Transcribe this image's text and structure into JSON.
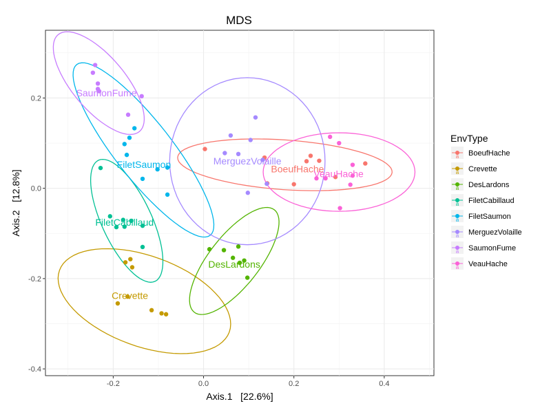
{
  "chart_data": {
    "type": "scatter",
    "title": "MDS",
    "xlabel": "Axis.1   [22.6%]",
    "ylabel": "Axis.2   [12.8%]",
    "xlim": [
      -0.35,
      0.51
    ],
    "ylim": [
      -0.415,
      0.35
    ],
    "x_ticks": [
      -0.2,
      0.0,
      0.2,
      0.4
    ],
    "y_ticks": [
      -0.4,
      -0.2,
      0.0,
      0.2
    ],
    "x_tick_labels": [
      "-0.2",
      "0.0",
      "0.2",
      "0.4"
    ],
    "y_tick_labels": [
      "-0.4",
      "-0.2",
      "0.0",
      "0.2"
    ],
    "grid": true,
    "legend": {
      "title": "EnvType",
      "placement": "right",
      "entries": [
        "BoeufHache",
        "Crevette",
        "DesLardons",
        "FiletCabillaud",
        "FiletSaumon",
        "MerguezVolaille",
        "SaumonFume",
        "VeauHache"
      ]
    },
    "series": [
      {
        "name": "BoeufHache",
        "color": "#F8766D",
        "label_pos": [
          0.208,
          0.035
        ],
        "ellipse": {
          "cx": 0.18,
          "cy": 0.052,
          "rx": 0.238,
          "ry": 0.055,
          "angle_deg": -4
        },
        "points": [
          [
            0.003,
            0.087
          ],
          [
            0.135,
            0.068
          ],
          [
            0.141,
            0.011
          ],
          [
            0.2,
            0.009
          ],
          [
            0.228,
            0.06
          ],
          [
            0.237,
            0.072
          ],
          [
            0.256,
            0.061
          ],
          [
            0.292,
            0.025
          ],
          [
            0.358,
            0.055
          ]
        ]
      },
      {
        "name": "Crevette",
        "color": "#C49A00",
        "label_pos": [
          -0.163,
          -0.245
        ],
        "ellipse": {
          "cx": -0.131,
          "cy": -0.25,
          "rx": 0.1,
          "ry": 0.2,
          "angle_deg": 70
        },
        "points": [
          [
            -0.173,
            -0.164
          ],
          [
            -0.162,
            -0.157
          ],
          [
            -0.158,
            -0.175
          ],
          [
            -0.19,
            -0.255
          ],
          [
            -0.168,
            -0.24
          ],
          [
            -0.115,
            -0.27
          ],
          [
            -0.093,
            -0.277
          ],
          [
            -0.083,
            -0.279
          ]
        ]
      },
      {
        "name": "DesLardons",
        "color": "#53B400",
        "label_pos": [
          0.068,
          -0.176
        ],
        "ellipse": {
          "cx": 0.068,
          "cy": -0.161,
          "rx": 0.056,
          "ry": 0.144,
          "angle_deg": -38
        },
        "points": [
          [
            0.013,
            -0.135
          ],
          [
            0.045,
            -0.137
          ],
          [
            0.065,
            -0.154
          ],
          [
            0.077,
            -0.129
          ],
          [
            0.08,
            -0.165
          ],
          [
            0.09,
            -0.16
          ],
          [
            0.097,
            -0.198
          ]
        ]
      },
      {
        "name": "FiletCabillaud",
        "color": "#00C094",
        "label_pos": [
          -0.175,
          -0.083
        ],
        "ellipse": {
          "cx": -0.17,
          "cy": -0.072,
          "rx": 0.055,
          "ry": 0.148,
          "angle_deg": 25
        },
        "points": [
          [
            -0.228,
            0.045
          ],
          [
            -0.207,
            -0.062
          ],
          [
            -0.193,
            -0.086
          ],
          [
            -0.178,
            -0.07
          ],
          [
            -0.175,
            -0.085
          ],
          [
            -0.16,
            -0.072
          ],
          [
            -0.135,
            -0.083
          ],
          [
            -0.135,
            -0.13
          ]
        ]
      },
      {
        "name": "FiletSaumon",
        "color": "#00B6EB",
        "label_pos": [
          -0.132,
          0.045
        ],
        "ellipse": {
          "cx": -0.133,
          "cy": 0.085,
          "rx": 0.063,
          "ry": 0.24,
          "angle_deg": 38
        },
        "points": [
          [
            -0.153,
            0.133
          ],
          [
            -0.164,
            0.112
          ],
          [
            -0.175,
            0.098
          ],
          [
            -0.17,
            0.074
          ],
          [
            -0.135,
            0.021
          ],
          [
            -0.102,
            0.042
          ],
          [
            -0.08,
            0.046
          ],
          [
            -0.08,
            -0.014
          ]
        ]
      },
      {
        "name": "MerguezVolaille",
        "color": "#A58AFF",
        "label_pos": [
          0.097,
          0.053
        ],
        "ellipse": {
          "cx": 0.097,
          "cy": 0.06,
          "rx": 0.172,
          "ry": 0.185,
          "angle_deg": 0
        },
        "points": [
          [
            0.06,
            0.117
          ],
          [
            0.047,
            0.078
          ],
          [
            0.077,
            0.076
          ],
          [
            0.104,
            0.107
          ],
          [
            0.115,
            0.157
          ],
          [
            0.131,
            0.063
          ],
          [
            0.14,
            0.01
          ],
          [
            0.098,
            -0.01
          ]
        ]
      },
      {
        "name": "SaumonFume",
        "color": "#C77CFF",
        "label_pos": [
          -0.215,
          0.204
        ],
        "ellipse": {
          "cx": -0.232,
          "cy": 0.233,
          "rx": 0.059,
          "ry": 0.14,
          "angle_deg": 40
        },
        "points": [
          [
            -0.24,
            0.273
          ],
          [
            -0.245,
            0.256
          ],
          [
            -0.234,
            0.232
          ],
          [
            -0.234,
            0.22
          ],
          [
            -0.231,
            0.215
          ],
          [
            -0.137,
            0.204
          ],
          [
            -0.167,
            0.163
          ]
        ]
      },
      {
        "name": "VeauHache",
        "color": "#FB61D7",
        "label_pos": [
          0.299,
          0.025
        ],
        "ellipse": {
          "cx": 0.3,
          "cy": 0.036,
          "rx": 0.168,
          "ry": 0.087,
          "angle_deg": 0
        },
        "points": [
          [
            0.25,
            0.022
          ],
          [
            0.27,
            0.022
          ],
          [
            0.28,
            0.114
          ],
          [
            0.3,
            0.1
          ],
          [
            0.33,
            0.052
          ],
          [
            0.33,
            0.028
          ],
          [
            0.325,
            0.008
          ],
          [
            0.302,
            -0.044
          ]
        ]
      }
    ]
  }
}
